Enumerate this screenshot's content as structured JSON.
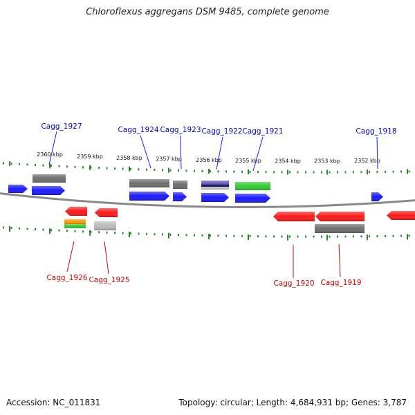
{
  "title": "Chloroflexus aggregans DSM 9485, complete genome",
  "footer": {
    "accession": "Accession: NC_011831",
    "topology": "Topology: circular; Length: 4,684,931 bp; Genes: 3,787"
  },
  "colors": {
    "forward": "#1a1aff",
    "reverse": "#ff1a1a",
    "grey": "#6e6e6e",
    "green": "#33cc33",
    "orange": "#ff9900",
    "lightgrey": "#bbbbbb",
    "purple": "#7766cc",
    "navy": "#111166",
    "tick": "#228822",
    "backbone": "#888888"
  },
  "ticks": [
    {
      "label": "2360 kbp"
    },
    {
      "label": "2359 kbp"
    },
    {
      "label": "2358 kbp"
    },
    {
      "label": "2357 kbp"
    },
    {
      "label": "2356 kbp"
    },
    {
      "label": "2355 kbp"
    },
    {
      "label": "2354 kbp"
    },
    {
      "label": "2353 kbp"
    },
    {
      "label": "2352 kbp"
    }
  ],
  "gene_labels": {
    "forward": [
      "Cagg_1927",
      "Cagg_1924",
      "Cagg_1923",
      "Cagg_1922",
      "Cagg_1921",
      "Cagg_1918"
    ],
    "reverse": [
      "Cagg_1926",
      "Cagg_1925",
      "Cagg_1920",
      "Cagg_1919"
    ]
  }
}
